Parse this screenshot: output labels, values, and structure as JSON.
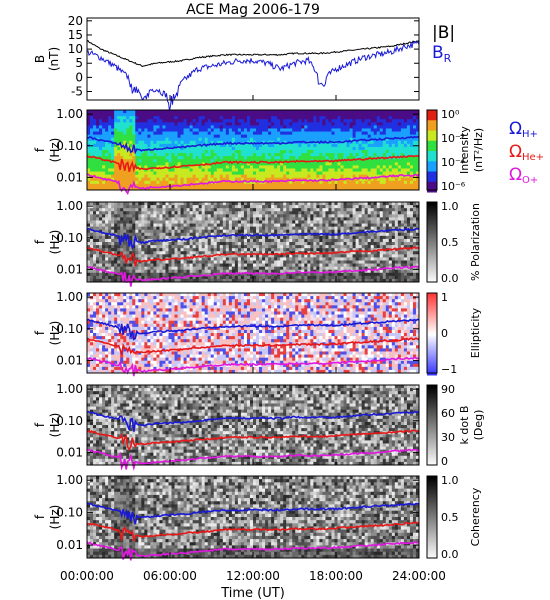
{
  "title": "ACE Mag 2006-179",
  "colors": {
    "black": "#000000",
    "blue": "#1a1ad6",
    "red": "#e81818",
    "magenta": "#e018e0",
    "spec_low": "#4a0a6e",
    "spec_mid": "#22dd44",
    "spec_high": "#e03018"
  },
  "chart_data": [
    {
      "type": "line",
      "panel": "B",
      "title": "",
      "ylabel": "B",
      "yunit": "(nT)",
      "ylim": [
        -8,
        21
      ],
      "yticks": [
        "20",
        "15",
        "10",
        "5",
        "0",
        "-5"
      ],
      "yticks_values": [
        20,
        15,
        10,
        5,
        0,
        -5
      ],
      "x": [
        0,
        1,
        2,
        3,
        4,
        5,
        6,
        7,
        8,
        9,
        10,
        11,
        12,
        13,
        14,
        15,
        16,
        17,
        18,
        19,
        20,
        21,
        22,
        23,
        24
      ],
      "series": [
        {
          "name": "|B|",
          "color": "black",
          "values": [
            13,
            10,
            8,
            6,
            4,
            5,
            5.5,
            6,
            7,
            7.5,
            8,
            8,
            8,
            8,
            8,
            8.5,
            8.5,
            8.5,
            9,
            9.5,
            10,
            10.5,
            11,
            12,
            13
          ]
        },
        {
          "name": "B_R",
          "color": "blue",
          "values": [
            9,
            7,
            4,
            0,
            -5,
            -4,
            -7,
            -1,
            3,
            4,
            5,
            6,
            6,
            5,
            3,
            5,
            6,
            -1,
            3,
            5,
            7,
            8,
            9,
            11,
            12
          ]
        }
      ]
    },
    {
      "type": "heatmap",
      "panel": "spectrum",
      "ylabel": "f",
      "yunit": "(Hz)",
      "yticks": [
        "1.00",
        "0.10",
        "0.01"
      ],
      "colorbar": {
        "label": "Intensity",
        "unit": "(nT²/Hz)",
        "ticks": [
          "10⁰",
          "10⁻²",
          "10⁻⁴",
          "10⁻⁶"
        ]
      }
    },
    {
      "type": "heatmap",
      "panel": "polarization",
      "ylabel": "f",
      "yunit": "(Hz)",
      "yticks": [
        "1.00",
        "0.10",
        "0.01"
      ],
      "colorbar": {
        "label": "% Polarization",
        "ticks": [
          "1.0",
          "0.5",
          "0.0"
        ]
      }
    },
    {
      "type": "heatmap",
      "panel": "ellipticity",
      "ylabel": "f",
      "yunit": "(Hz)",
      "yticks": [
        "1.00",
        "0.10",
        "0.01"
      ],
      "colorbar": {
        "label": "Ellipticity",
        "ticks": [
          "1",
          "0",
          "−1"
        ]
      }
    },
    {
      "type": "heatmap",
      "panel": "kdotb",
      "ylabel": "f",
      "yunit": "(Hz)",
      "yticks": [
        "1.00",
        "0.10",
        "0.01"
      ],
      "colorbar": {
        "label": "k dot B",
        "unit": "(Deg)",
        "ticks": [
          "90",
          "60",
          "30",
          "0"
        ]
      }
    },
    {
      "type": "heatmap",
      "panel": "coherency",
      "ylabel": "f",
      "yunit": "(Hz)",
      "yticks": [
        "1.00",
        "0.10",
        "0.01"
      ],
      "colorbar": {
        "label": "Coherency",
        "ticks": [
          "1.0",
          "0.5",
          "0.0"
        ]
      }
    }
  ],
  "gyrofrequencies": {
    "x": [
      0,
      1,
      2,
      3,
      4,
      5,
      6,
      7,
      8,
      9,
      10,
      11,
      12,
      13,
      14,
      15,
      16,
      17,
      18,
      19,
      20,
      21,
      22,
      23,
      24
    ],
    "H_plus_hz": [
      0.19,
      0.15,
      0.12,
      0.09,
      0.07,
      0.08,
      0.085,
      0.09,
      0.1,
      0.11,
      0.12,
      0.12,
      0.12,
      0.12,
      0.12,
      0.13,
      0.13,
      0.13,
      0.13,
      0.14,
      0.15,
      0.16,
      0.17,
      0.18,
      0.19
    ],
    "He_plus_hz": [
      0.048,
      0.038,
      0.03,
      0.023,
      0.018,
      0.02,
      0.021,
      0.023,
      0.025,
      0.027,
      0.03,
      0.03,
      0.03,
      0.03,
      0.03,
      0.032,
      0.032,
      0.032,
      0.033,
      0.036,
      0.038,
      0.04,
      0.043,
      0.046,
      0.049
    ],
    "O_plus_hz": [
      0.012,
      0.0095,
      0.0075,
      0.0057,
      0.0045,
      0.005,
      0.0053,
      0.0057,
      0.0063,
      0.0068,
      0.0075,
      0.0075,
      0.0075,
      0.0075,
      0.0075,
      0.008,
      0.008,
      0.008,
      0.0083,
      0.009,
      0.0095,
      0.01,
      0.011,
      0.0115,
      0.012
    ]
  },
  "legend": {
    "B": [
      {
        "label": "|B|",
        "color": "black"
      },
      {
        "label": "B",
        "sub": "R",
        "color": "blue"
      }
    ],
    "omega": [
      {
        "label": "Ω",
        "sub": "H+",
        "color": "blue"
      },
      {
        "label": "Ω",
        "sub": "He+",
        "color": "red"
      },
      {
        "label": "Ω",
        "sub": "O+",
        "color": "magenta"
      }
    ]
  },
  "xaxis": {
    "label": "Time (UT)",
    "ticks": [
      "00:00:00",
      "06:00:00",
      "12:00:00",
      "18:00:00",
      "24:00:00"
    ],
    "ticks_hours": [
      0,
      6,
      12,
      18,
      24
    ]
  }
}
